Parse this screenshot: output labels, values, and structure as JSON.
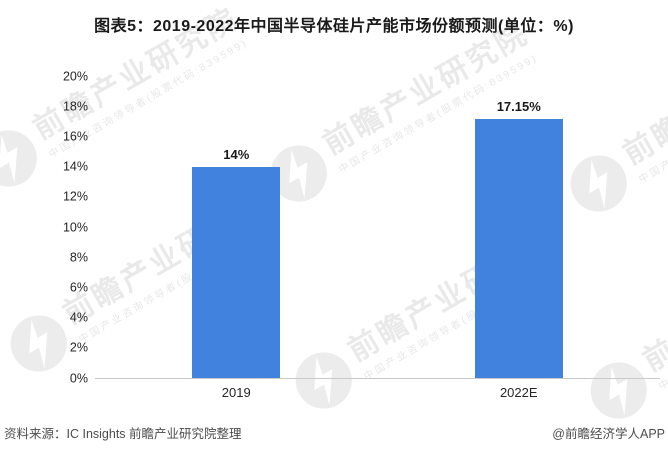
{
  "title": "图表5：2019-2022年中国半导体硅片产能市场份额预测(单位：%)",
  "chart_data": {
    "type": "bar",
    "title": "图表5：2019-2022年中国半导体硅片产能市场份额预测(单位：%)",
    "categories": [
      "2019",
      "2022E"
    ],
    "values": [
      14,
      17.15
    ],
    "value_labels": [
      "14%",
      "17.15%"
    ],
    "xlabel": "",
    "ylabel": "",
    "ylim": [
      0,
      20
    ],
    "ytick_step": 2,
    "ytick_labels": [
      "0%",
      "2%",
      "4%",
      "6%",
      "8%",
      "10%",
      "12%",
      "14%",
      "16%",
      "18%",
      "20%"
    ],
    "bar_color": "#4182DF",
    "grid": false,
    "legend": false,
    "axis_line_color": "#c9c9c9"
  },
  "footer": {
    "source": "资料来源：IC Insights 前瞻产业研究院整理",
    "brand": "@前瞻经济学人APP"
  },
  "watermark": {
    "text": "前瞻产业研究院",
    "subtext": "中国产业咨询领导者(股票代码:839599)",
    "logo": "qianzhan-logo"
  }
}
